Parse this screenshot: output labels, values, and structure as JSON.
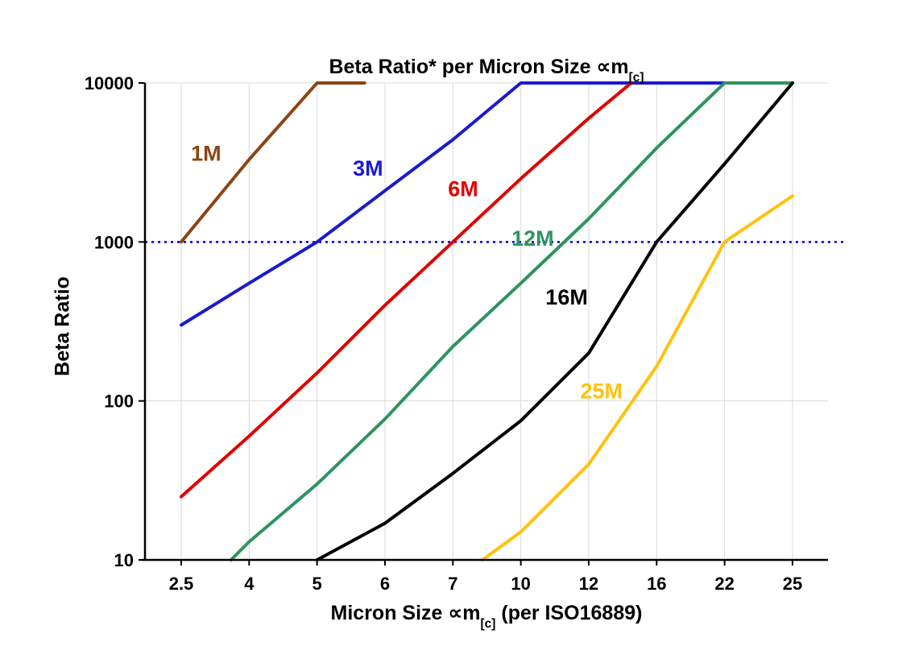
{
  "title": {
    "main": "Beta Ratio* per Micron Size ∝m",
    "sub": "[c]"
  },
  "axes": {
    "y_label": "Beta Ratio",
    "x_label_pre": "Micron Size ∝m",
    "x_label_sub": "[c]",
    "x_label_post": " (per ISO16889)"
  },
  "chart_data": {
    "type": "line",
    "title": "Beta Ratio* per Micron Size ∝m[c]",
    "xlabel": "Micron Size ∝m[c] (per ISO16889)",
    "ylabel": "Beta Ratio",
    "x_scale": "category",
    "y_scale": "log",
    "ylim": [
      10,
      10000
    ],
    "x_ticks": [
      2.5,
      4,
      5,
      6,
      7,
      10,
      12,
      16,
      22,
      25
    ],
    "y_ticks": [
      10,
      100,
      1000,
      10000
    ],
    "grid": true,
    "grid_color": "#d9d9d9",
    "reference_line": {
      "y": 1000,
      "color": "#0000cc",
      "style": "dotted"
    },
    "legend_position": "inline-labels",
    "series": [
      {
        "name": "1M",
        "color": "#8b4513",
        "points": [
          [
            2.5,
            1000
          ],
          [
            4,
            3300
          ],
          [
            5,
            10000
          ],
          [
            5.7,
            10000
          ]
        ],
        "label_at": [
          3.05,
          3600
        ]
      },
      {
        "name": "3M",
        "color": "#1a1acf",
        "points": [
          [
            2.5,
            300
          ],
          [
            4,
            550
          ],
          [
            5,
            1000
          ],
          [
            6,
            2100
          ],
          [
            7,
            4400
          ],
          [
            10,
            10000
          ],
          [
            22,
            10000
          ]
        ],
        "label_at": [
          5.75,
          2900
        ]
      },
      {
        "name": "6M",
        "color": "#e00000",
        "points": [
          [
            2.5,
            25
          ],
          [
            4,
            60
          ],
          [
            5,
            150
          ],
          [
            6,
            400
          ],
          [
            7,
            1000
          ],
          [
            10,
            2500
          ],
          [
            12,
            6000
          ],
          [
            14.5,
            10000
          ]
        ],
        "label_at": [
          7.45,
          2150
        ]
      },
      {
        "name": "12M",
        "color": "#2e9360",
        "points": [
          [
            3.6,
            10
          ],
          [
            4,
            13
          ],
          [
            5,
            30
          ],
          [
            6,
            77
          ],
          [
            7,
            220
          ],
          [
            10,
            550
          ],
          [
            12,
            1400
          ],
          [
            16,
            3900
          ],
          [
            22,
            10000
          ],
          [
            25,
            10000
          ]
        ],
        "label_at": [
          10.35,
          1050
        ]
      },
      {
        "name": "16M",
        "color": "#000000",
        "points": [
          [
            5,
            10
          ],
          [
            6,
            17
          ],
          [
            7,
            35
          ],
          [
            10,
            75
          ],
          [
            12,
            200
          ],
          [
            16,
            1000
          ],
          [
            22,
            3100
          ],
          [
            25,
            10000
          ]
        ],
        "label_at": [
          11.35,
          450
        ]
      },
      {
        "name": "25M",
        "color": "#ffc20e",
        "points": [
          [
            8.3,
            10
          ],
          [
            10,
            15
          ],
          [
            12,
            40
          ],
          [
            16,
            165
          ],
          [
            22,
            1000
          ],
          [
            25,
            1950
          ]
        ],
        "label_at": [
          12.75,
          115
        ]
      }
    ]
  }
}
